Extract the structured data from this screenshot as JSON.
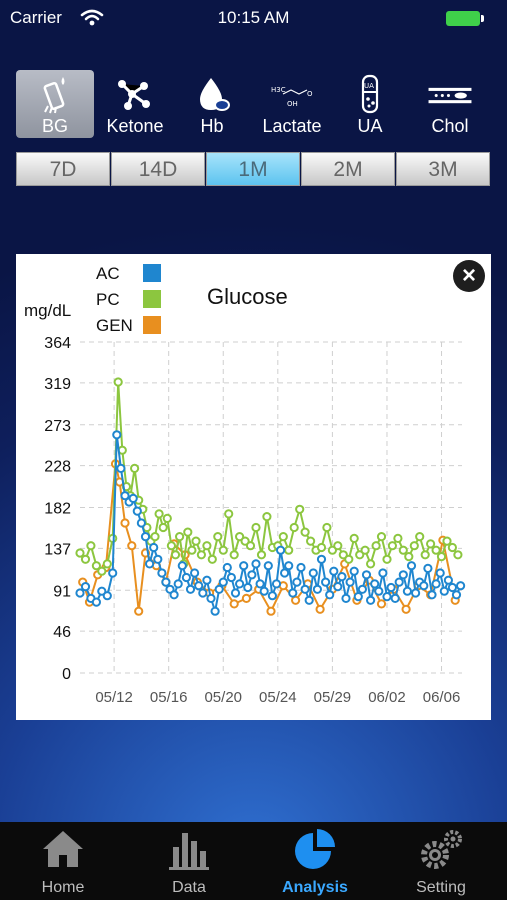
{
  "status_bar": {
    "carrier": "Carrier",
    "time": "10:15 AM"
  },
  "type_tabs": [
    {
      "label": "BG",
      "icon": "test-strip-icon",
      "active": true
    },
    {
      "label": "Ketone",
      "icon": "molecule-icon",
      "active": false
    },
    {
      "label": "Hb",
      "icon": "blood-drop-icon",
      "active": false
    },
    {
      "label": "Lactate",
      "icon": "lactate-formula-icon",
      "active": false
    },
    {
      "label": "UA",
      "icon": "test-tube-icon",
      "active": false
    },
    {
      "label": "Chol",
      "icon": "cholesterol-vessel-icon",
      "active": false
    }
  ],
  "range_tabs": [
    {
      "label": "7D",
      "active": false
    },
    {
      "label": "14D",
      "active": false
    },
    {
      "label": "1M",
      "active": true
    },
    {
      "label": "2M",
      "active": false
    },
    {
      "label": "3M",
      "active": false
    }
  ],
  "chart_data": {
    "type": "line",
    "title": "Glucose",
    "ylabel": "mg/dL",
    "xlabel": "",
    "ylim": [
      0,
      364
    ],
    "yticks": [
      0,
      46,
      91,
      137,
      182,
      228,
      273,
      319,
      364
    ],
    "xticks": [
      "05/12",
      "05/16",
      "05/20",
      "05/24",
      "05/29",
      "06/02",
      "06/06"
    ],
    "x_day_range": [
      -2.5,
      25.5
    ],
    "xtick_days": [
      0,
      4,
      8,
      12,
      16,
      20,
      24
    ],
    "grid": true,
    "legend_position": "top-left",
    "series": [
      {
        "name": "AC",
        "color": "#1f86cf",
        "x": [
          -2.5,
          -2.1,
          -1.7,
          -1.3,
          -0.9,
          -0.5,
          -0.1,
          0.2,
          0.5,
          0.8,
          1.1,
          1.4,
          1.7,
          2.0,
          2.3,
          2.6,
          2.9,
          3.2,
          3.5,
          3.8,
          4.1,
          4.4,
          4.7,
          5.0,
          5.3,
          5.6,
          5.9,
          6.2,
          6.5,
          6.8,
          7.1,
          7.4,
          7.7,
          8.0,
          8.3,
          8.6,
          8.9,
          9.2,
          9.5,
          9.8,
          10.1,
          10.4,
          10.7,
          11.0,
          11.3,
          11.6,
          11.9,
          12.2,
          12.5,
          12.8,
          13.1,
          13.4,
          13.7,
          14.0,
          14.3,
          14.6,
          14.9,
          15.2,
          15.5,
          15.8,
          16.1,
          16.4,
          16.7,
          17.0,
          17.3,
          17.6,
          17.9,
          18.2,
          18.5,
          18.8,
          19.1,
          19.4,
          19.7,
          20.0,
          20.3,
          20.6,
          20.9,
          21.2,
          21.5,
          21.8,
          22.1,
          22.4,
          22.7,
          23.0,
          23.3,
          23.6,
          23.9,
          24.2,
          24.5,
          24.8,
          25.1,
          25.4
        ],
        "values": [
          88,
          95,
          82,
          78,
          90,
          85,
          110,
          262,
          225,
          195,
          188,
          192,
          178,
          165,
          150,
          120,
          138,
          125,
          110,
          100,
          92,
          86,
          98,
          118,
          105,
          92,
          110,
          96,
          88,
          102,
          82,
          68,
          92,
          100,
          116,
          105,
          88,
          98,
          118,
          94,
          108,
          120,
          98,
          90,
          118,
          85,
          98,
          135,
          110,
          118,
          88,
          100,
          116,
          92,
          80,
          110,
          92,
          125,
          100,
          86,
          112,
          95,
          106,
          82,
          100,
          112,
          84,
          92,
          108,
          80,
          98,
          90,
          110,
          84,
          94,
          82,
          100,
          108,
          90,
          118,
          88,
          100,
          96,
          115,
          86,
          98,
          110,
          90,
          102,
          94,
          86,
          96
        ]
      },
      {
        "name": "PC",
        "color": "#8cc63f",
        "x": [
          -2.5,
          -2.1,
          -1.7,
          -1.3,
          -0.9,
          -0.5,
          -0.1,
          0.3,
          0.6,
          0.9,
          1.2,
          1.5,
          1.8,
          2.1,
          2.4,
          2.7,
          3.0,
          3.3,
          3.6,
          3.9,
          4.2,
          4.5,
          4.8,
          5.1,
          5.4,
          5.7,
          6.0,
          6.4,
          6.8,
          7.2,
          7.6,
          8.0,
          8.4,
          8.8,
          9.2,
          9.6,
          10.0,
          10.4,
          10.8,
          11.2,
          11.6,
          12.0,
          12.4,
          12.8,
          13.2,
          13.6,
          14.0,
          14.4,
          14.8,
          15.2,
          15.6,
          16.0,
          16.4,
          16.8,
          17.2,
          17.6,
          18.0,
          18.4,
          18.8,
          19.2,
          19.6,
          20.0,
          20.4,
          20.8,
          21.2,
          21.6,
          22.0,
          22.4,
          22.8,
          23.2,
          23.6,
          24.0,
          24.4,
          24.8,
          25.2
        ],
        "values": [
          132,
          125,
          140,
          118,
          112,
          120,
          148,
          320,
          245,
          205,
          195,
          225,
          190,
          180,
          160,
          145,
          150,
          175,
          160,
          170,
          140,
          130,
          150,
          120,
          155,
          135,
          145,
          130,
          140,
          125,
          150,
          135,
          175,
          130,
          150,
          145,
          140,
          160,
          130,
          172,
          138,
          140,
          150,
          135,
          160,
          180,
          155,
          145,
          135,
          138,
          160,
          135,
          140,
          130,
          125,
          148,
          130,
          135,
          120,
          140,
          150,
          125,
          140,
          148,
          135,
          128,
          140,
          150,
          130,
          142,
          135,
          128,
          145,
          138,
          130
        ]
      },
      {
        "name": "GEN",
        "color": "#e88f1f",
        "x": [
          -2.3,
          -1.8,
          -1.2,
          -0.6,
          0.1,
          0.4,
          0.8,
          1.3,
          1.8,
          2.3,
          3.1,
          3.8,
          4.4,
          5.2,
          6.1,
          7.0,
          7.9,
          8.8,
          9.7,
          10.6,
          11.5,
          12.4,
          13.3,
          14.2,
          15.1,
          16.0,
          16.9,
          17.8,
          18.7,
          19.6,
          20.5,
          21.4,
          22.3,
          23.2,
          24.1,
          25.0
        ],
        "values": [
          100,
          78,
          108,
          116,
          230,
          210,
          165,
          140,
          68,
          132,
          118,
          100,
          142,
          130,
          100,
          88,
          96,
          76,
          82,
          92,
          68,
          96,
          80,
          98,
          70,
          92,
          120,
          80,
          102,
          76,
          92,
          70,
          96,
          86,
          146,
          80
        ]
      }
    ]
  },
  "close_button": {
    "glyph": "×"
  },
  "nav": [
    {
      "label": "Home",
      "icon": "house-icon",
      "active": false
    },
    {
      "label": "Data",
      "icon": "bar-chart-icon",
      "active": false
    },
    {
      "label": "Analysis",
      "icon": "pie-chart-icon",
      "active": true
    },
    {
      "label": "Setting",
      "icon": "gears-icon",
      "active": false
    }
  ]
}
